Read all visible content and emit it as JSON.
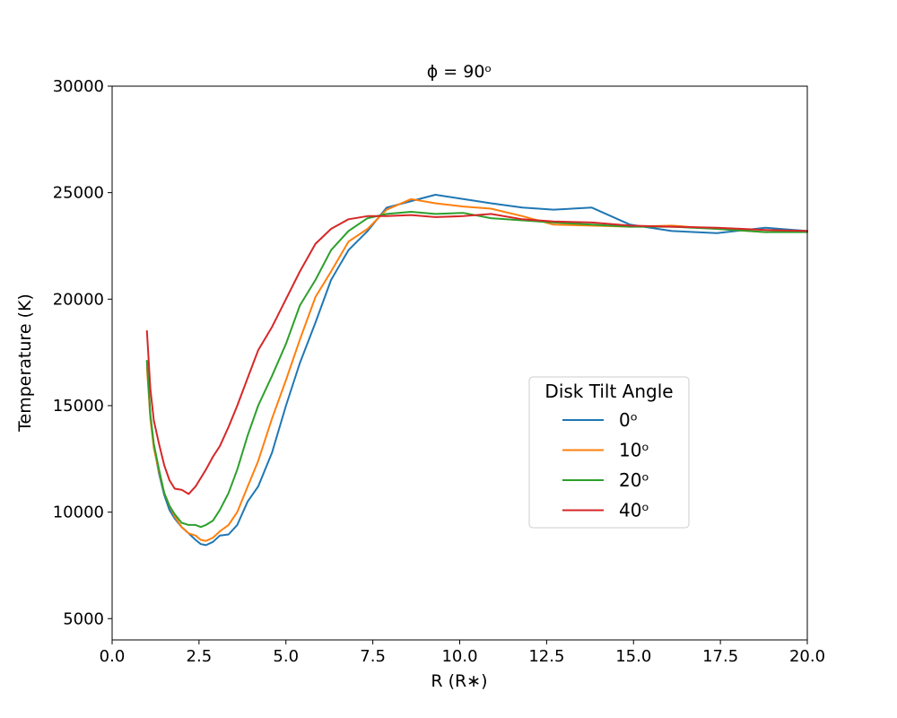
{
  "chart_data": {
    "type": "line",
    "title": "ϕ = 90ᵒ",
    "xlabel": "R (R∗)",
    "ylabel": "Temperature (K)",
    "xlim": [
      0,
      20
    ],
    "ylim": [
      4000,
      30000
    ],
    "xticks": [
      0,
      2.5,
      5,
      7.5,
      10,
      12.5,
      15,
      17.5,
      20
    ],
    "xtick_labels": [
      "0.0",
      "2.5",
      "5.0",
      "7.5",
      "10.0",
      "12.5",
      "15.0",
      "17.5",
      "20.0"
    ],
    "yticks": [
      5000,
      10000,
      15000,
      20000,
      25000,
      30000
    ],
    "ytick_labels": [
      "5000",
      "10000",
      "15000",
      "20000",
      "25000",
      "30000"
    ],
    "grid": false,
    "legend": {
      "title": "Disk Tilt Angle",
      "position": "center-right"
    },
    "series": [
      {
        "name": "0ᵒ",
        "color": "#1f77b4",
        "x": [
          1.0,
          1.1,
          1.2,
          1.35,
          1.5,
          1.65,
          1.8,
          2.0,
          2.2,
          2.4,
          2.55,
          2.7,
          2.9,
          3.1,
          3.35,
          3.6,
          3.9,
          4.2,
          4.6,
          5.0,
          5.4,
          5.85,
          6.3,
          6.8,
          7.35,
          7.9,
          8.6,
          9.3,
          10.1,
          10.9,
          11.8,
          12.7,
          13.8,
          14.9,
          16.1,
          17.4,
          18.8,
          20.0
        ],
        "y": [
          17100,
          14500,
          13100,
          11800,
          10800,
          10100,
          9700,
          9300,
          9000,
          8700,
          8500,
          8450,
          8600,
          8900,
          8950,
          9400,
          10500,
          11200,
          12800,
          15000,
          17000,
          18900,
          20900,
          22300,
          23200,
          24300,
          24600,
          24900,
          24700,
          24500,
          24300,
          24200,
          24300,
          23500,
          23200,
          23100,
          23350,
          23200
        ]
      },
      {
        "name": "10ᵒ",
        "color": "#ff7f0e",
        "x": [
          1.0,
          1.1,
          1.2,
          1.35,
          1.5,
          1.65,
          1.8,
          2.0,
          2.2,
          2.4,
          2.55,
          2.7,
          2.9,
          3.1,
          3.35,
          3.6,
          3.9,
          4.2,
          4.6,
          5.0,
          5.4,
          5.85,
          6.3,
          6.8,
          7.35,
          7.9,
          8.6,
          9.3,
          10.1,
          10.9,
          11.8,
          12.7,
          13.8,
          14.9,
          16.1,
          17.4,
          18.8,
          20.0
        ],
        "y": [
          16800,
          14400,
          13000,
          11900,
          10900,
          10300,
          9800,
          9300,
          9000,
          8900,
          8700,
          8650,
          8800,
          9100,
          9400,
          10000,
          11200,
          12400,
          14400,
          16200,
          18100,
          20100,
          21300,
          22700,
          23300,
          24200,
          24700,
          24500,
          24350,
          24250,
          23900,
          23500,
          23450,
          23400,
          23450,
          23300,
          23150,
          23200
        ]
      },
      {
        "name": "20ᵒ",
        "color": "#2ca02c",
        "x": [
          1.0,
          1.1,
          1.2,
          1.35,
          1.5,
          1.65,
          1.8,
          2.0,
          2.2,
          2.4,
          2.55,
          2.7,
          2.9,
          3.1,
          3.35,
          3.6,
          3.9,
          4.2,
          4.6,
          5.0,
          5.4,
          5.85,
          6.3,
          6.8,
          7.35,
          7.9,
          8.6,
          9.3,
          10.1,
          10.9,
          11.8,
          12.7,
          13.8,
          14.9,
          16.1,
          17.4,
          18.8,
          20.0
        ],
        "y": [
          17100,
          14600,
          13200,
          12000,
          10900,
          10300,
          9900,
          9500,
          9400,
          9400,
          9300,
          9400,
          9600,
          10100,
          10900,
          12000,
          13600,
          15000,
          16400,
          17900,
          19700,
          20900,
          22300,
          23200,
          23800,
          24000,
          24100,
          24000,
          24050,
          23800,
          23700,
          23600,
          23500,
          23400,
          23400,
          23300,
          23150,
          23150
        ]
      },
      {
        "name": "40ᵒ",
        "color": "#d62728",
        "x": [
          1.0,
          1.1,
          1.2,
          1.35,
          1.5,
          1.65,
          1.8,
          2.0,
          2.2,
          2.4,
          2.55,
          2.7,
          2.9,
          3.1,
          3.35,
          3.6,
          3.9,
          4.2,
          4.6,
          5.0,
          5.4,
          5.85,
          6.3,
          6.8,
          7.35,
          7.9,
          8.6,
          9.3,
          10.1,
          10.9,
          11.8,
          12.7,
          13.8,
          14.9,
          16.1,
          17.4,
          18.8,
          20.0
        ],
        "y": [
          18500,
          15800,
          14300,
          13200,
          12200,
          11500,
          11100,
          11050,
          10850,
          11200,
          11600,
          12000,
          12600,
          13100,
          14000,
          15000,
          16300,
          17600,
          18700,
          20000,
          21300,
          22600,
          23300,
          23750,
          23900,
          23900,
          23950,
          23850,
          23900,
          24000,
          23750,
          23650,
          23600,
          23450,
          23400,
          23350,
          23250,
          23200
        ]
      }
    ]
  }
}
